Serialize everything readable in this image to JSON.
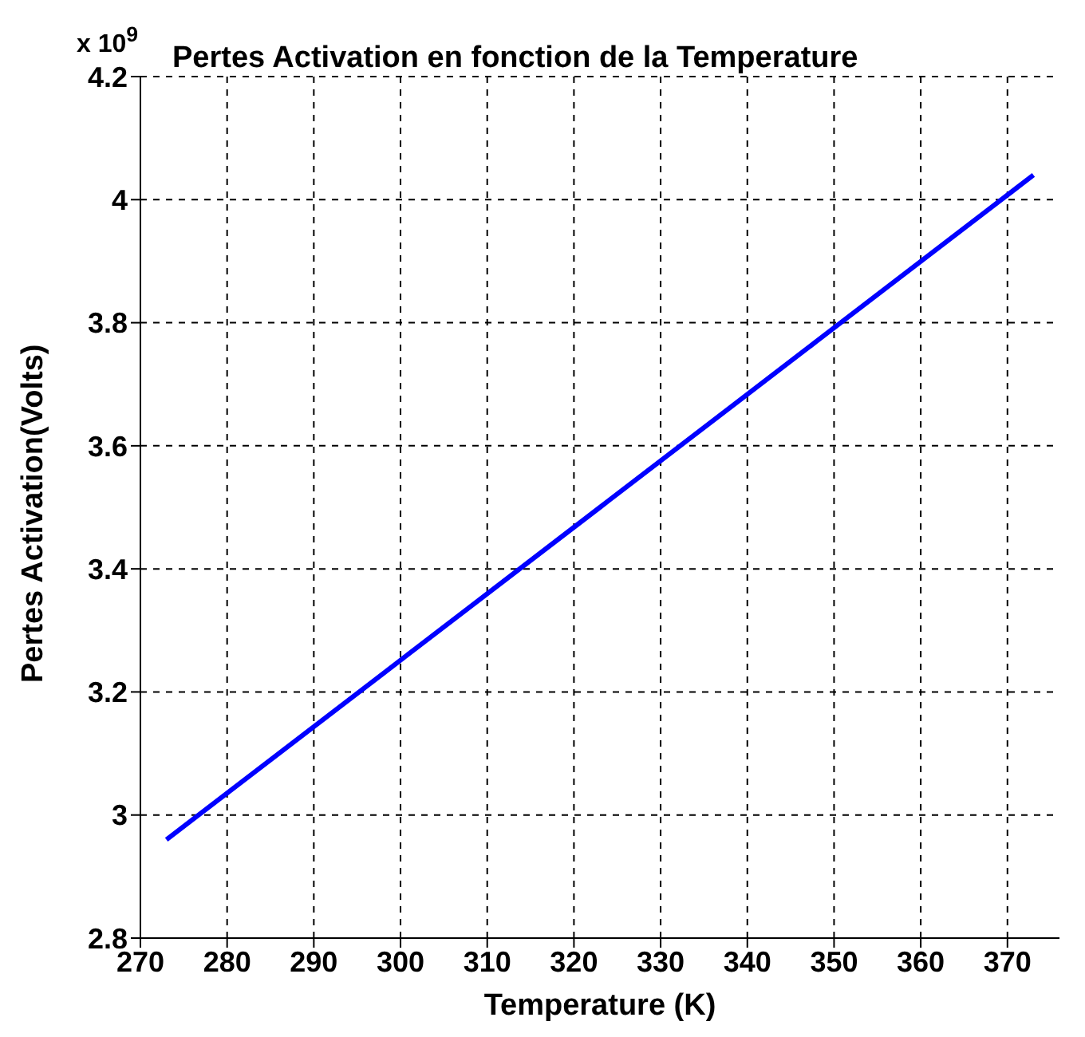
{
  "chart_data": {
    "type": "line",
    "title": "Pertes Activation en fonction de la Temperature",
    "xlabel": "Temperature (K)",
    "ylabel": "Pertes Activation(Volts)",
    "annotations": [
      "x 10$^{9}$"
    ],
    "series": [
      {
        "color": "#0000ff",
        "x": [
          273,
          298,
          323,
          348,
          373
        ],
        "values": [
          2.96,
          3.23,
          3.5,
          3.77,
          4.04
        ]
      }
    ],
    "xlim": [
      270,
      376
    ],
    "xticks": [
      270,
      280,
      290,
      300,
      310,
      320,
      330,
      340,
      350,
      360,
      370
    ],
    "ylim": [
      2.8,
      4.2
    ],
    "yticks": [
      2.8,
      3,
      3.2,
      3.4,
      3.6,
      3.8,
      4,
      4.2
    ],
    "grid": true,
    "line_style": "solid",
    "marker": "none",
    "legend": false
  }
}
